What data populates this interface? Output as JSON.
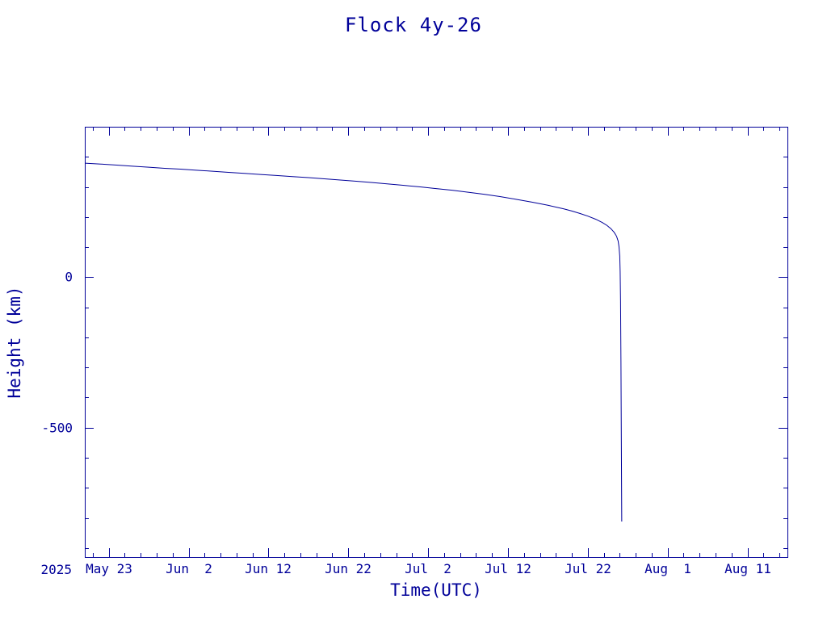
{
  "figure": {
    "background": "#ffffff",
    "ink_color": "#000099"
  },
  "chart_data": {
    "type": "line",
    "title": "Flock 4y-26",
    "xlabel": "Time(UTC)",
    "ylabel": "Height (km)",
    "grid": false,
    "legend": null,
    "x_axis": {
      "year_label": "2025",
      "unit": "days",
      "range": [
        0,
        88
      ],
      "major_ticks": [
        {
          "x": 3,
          "label": "May 23"
        },
        {
          "x": 13,
          "label": "Jun  2"
        },
        {
          "x": 23,
          "label": "Jun 12"
        },
        {
          "x": 33,
          "label": "Jun 22"
        },
        {
          "x": 43,
          "label": "Jul  2"
        },
        {
          "x": 53,
          "label": "Jul 12"
        },
        {
          "x": 63,
          "label": "Jul 22"
        },
        {
          "x": 73,
          "label": "Aug  1"
        },
        {
          "x": 83,
          "label": "Aug 11"
        }
      ],
      "minor_tick_step": 2
    },
    "y_axis": {
      "range": [
        -930,
        500
      ],
      "major_ticks": [
        {
          "y": 0,
          "label": "0"
        },
        {
          "y": -500,
          "label": "-500"
        }
      ],
      "minor_tick_step": 100
    },
    "series": [
      {
        "name": "Flock 4y-26 height",
        "color": "#000099",
        "points": [
          [
            0,
            379
          ],
          [
            2,
            376
          ],
          [
            4,
            372.5
          ],
          [
            6,
            369
          ],
          [
            8,
            365.5
          ],
          [
            10,
            362
          ],
          [
            12,
            359
          ],
          [
            14,
            355.5
          ],
          [
            16,
            352
          ],
          [
            18,
            348.5
          ],
          [
            20,
            345
          ],
          [
            22,
            341.5
          ],
          [
            24,
            338
          ],
          [
            26,
            334.5
          ],
          [
            28,
            331
          ],
          [
            30,
            327
          ],
          [
            32,
            323
          ],
          [
            34,
            319
          ],
          [
            36,
            314.5
          ],
          [
            38,
            310
          ],
          [
            40,
            305
          ],
          [
            42,
            300
          ],
          [
            44,
            294.5
          ],
          [
            46,
            289
          ],
          [
            48,
            282.5
          ],
          [
            50,
            275.5
          ],
          [
            52,
            268
          ],
          [
            54,
            259
          ],
          [
            56,
            249.5
          ],
          [
            58,
            239
          ],
          [
            60,
            227
          ],
          [
            61,
            220
          ],
          [
            62,
            212
          ],
          [
            63,
            203
          ],
          [
            64,
            192.5
          ],
          [
            64.8,
            182
          ],
          [
            65.4,
            172
          ],
          [
            65.9,
            161
          ],
          [
            66.3,
            149
          ],
          [
            66.6,
            136
          ],
          [
            66.8,
            120
          ],
          [
            66.9,
            102
          ],
          [
            67.0,
            70
          ],
          [
            67.05,
            20
          ],
          [
            67.1,
            -80
          ],
          [
            67.15,
            -280
          ],
          [
            67.2,
            -550
          ],
          [
            67.25,
            -812
          ]
        ]
      }
    ]
  }
}
